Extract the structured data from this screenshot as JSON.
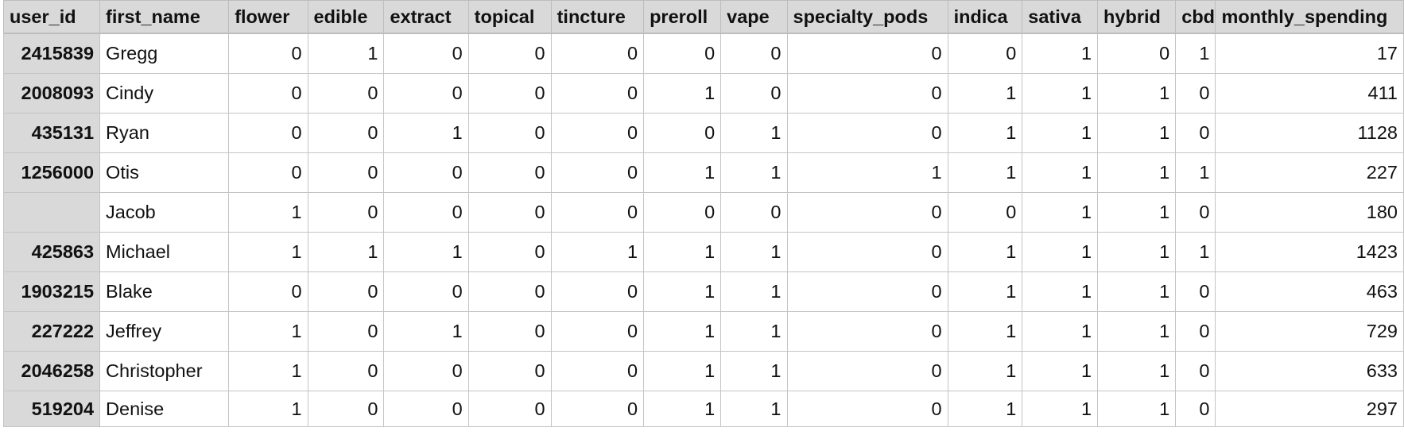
{
  "sheet": {
    "headers": [
      "user_id",
      "first_name",
      "flower",
      "edible",
      "extract",
      "topical",
      "tincture",
      "preroll",
      "vape",
      "specialty_pods",
      "indica",
      "sativa",
      "hybrid",
      "cbd",
      "monthly_spending"
    ],
    "rows": [
      [
        "2415839",
        "Gregg",
        "0",
        "1",
        "0",
        "0",
        "0",
        "0",
        "0",
        "0",
        "0",
        "1",
        "0",
        "1",
        "17"
      ],
      [
        "2008093",
        "Cindy",
        "0",
        "0",
        "0",
        "0",
        "0",
        "1",
        "0",
        "0",
        "1",
        "1",
        "1",
        "0",
        "411"
      ],
      [
        "435131",
        "Ryan",
        "0",
        "0",
        "1",
        "0",
        "0",
        "0",
        "1",
        "0",
        "1",
        "1",
        "1",
        "0",
        "1128"
      ],
      [
        "1256000",
        "Otis",
        "0",
        "0",
        "0",
        "0",
        "0",
        "1",
        "1",
        "1",
        "1",
        "1",
        "1",
        "1",
        "227"
      ],
      [
        "",
        "Jacob",
        "1",
        "0",
        "0",
        "0",
        "0",
        "0",
        "0",
        "0",
        "0",
        "1",
        "1",
        "0",
        "180"
      ],
      [
        "425863",
        "Michael",
        "1",
        "1",
        "1",
        "0",
        "1",
        "1",
        "1",
        "0",
        "1",
        "1",
        "1",
        "1",
        "1423"
      ],
      [
        "1903215",
        "Blake",
        "0",
        "0",
        "0",
        "0",
        "0",
        "1",
        "1",
        "0",
        "1",
        "1",
        "1",
        "0",
        "463"
      ],
      [
        "227222",
        "Jeffrey",
        "1",
        "0",
        "1",
        "0",
        "0",
        "1",
        "1",
        "0",
        "1",
        "1",
        "1",
        "0",
        "729"
      ],
      [
        "2046258",
        "Christopher",
        "1",
        "0",
        "0",
        "0",
        "0",
        "1",
        "1",
        "0",
        "1",
        "1",
        "1",
        "0",
        "633"
      ],
      [
        "519204",
        "Denise",
        "1",
        "0",
        "0",
        "0",
        "0",
        "1",
        "1",
        "0",
        "1",
        "1",
        "1",
        "0",
        "297"
      ]
    ]
  }
}
